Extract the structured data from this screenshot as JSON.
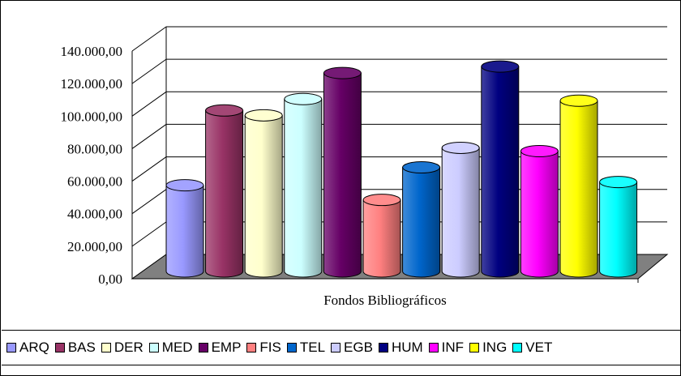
{
  "chart_data": {
    "type": "bar",
    "style": "3d-cylinder",
    "categories": [
      "Fondos Bibliográficos"
    ],
    "xlabel": "Fondos Bibliográficos",
    "ylim": [
      0,
      140000
    ],
    "y_ticks": [
      "0,00",
      "20.000,00",
      "40.000,00",
      "60.000,00",
      "80.000,00",
      "100.000,00",
      "120.000,00",
      "140.000,00"
    ],
    "grid": true,
    "legend_position": "bottom",
    "series": [
      {
        "name": "ARQ",
        "values": [
          53000
        ],
        "color": "#9999FF"
      },
      {
        "name": "BAS",
        "values": [
          99000
        ],
        "color": "#993366"
      },
      {
        "name": "DER",
        "values": [
          96000
        ],
        "color": "#FFFFCC"
      },
      {
        "name": "MED",
        "values": [
          106000
        ],
        "color": "#CCFFFF"
      },
      {
        "name": "EMP",
        "values": [
          122000
        ],
        "color": "#660066"
      },
      {
        "name": "FIS",
        "values": [
          44000
        ],
        "color": "#FF8080"
      },
      {
        "name": "TEL",
        "values": [
          64000
        ],
        "color": "#0066CC"
      },
      {
        "name": "EGB",
        "values": [
          76000
        ],
        "color": "#CCCCFF"
      },
      {
        "name": "HUM",
        "values": [
          126000
        ],
        "color": "#000080"
      },
      {
        "name": "INF",
        "values": [
          74000
        ],
        "color": "#FF00FF"
      },
      {
        "name": "ING",
        "values": [
          105000
        ],
        "color": "#FFFF00"
      },
      {
        "name": "VET",
        "values": [
          55000
        ],
        "color": "#00FFFF"
      }
    ]
  }
}
